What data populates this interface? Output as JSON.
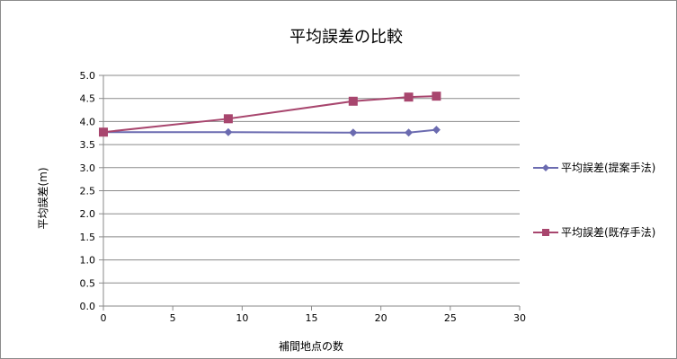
{
  "chart_data": {
    "type": "line",
    "title": "平均誤差の比較",
    "xlabel": "補間地点の数",
    "ylabel": "平均誤差(m)",
    "xlim": [
      0,
      30
    ],
    "ylim": [
      0,
      5
    ],
    "x_ticks": [
      0,
      5,
      10,
      15,
      20,
      25,
      30
    ],
    "x_tick_labels": [
      "0",
      "5",
      "10",
      "15",
      "20",
      "25",
      "30"
    ],
    "y_ticks": [
      0,
      0.5,
      1.0,
      1.5,
      2.0,
      2.5,
      3.0,
      3.5,
      4.0,
      4.5,
      5.0
    ],
    "y_tick_labels": [
      "0.0",
      "0.5",
      "1.0",
      "1.5",
      "2.0",
      "2.5",
      "3.0",
      "3.5",
      "4.0",
      "4.5",
      "5.0"
    ],
    "grid": "horizontal",
    "legend_position": "right",
    "series": [
      {
        "name": "平均誤差(提案手法)",
        "color": "#6b6bb0",
        "marker": "diamond",
        "x": [
          0,
          9,
          18,
          22,
          24
        ],
        "y": [
          3.77,
          3.77,
          3.76,
          3.76,
          3.82
        ]
      },
      {
        "name": "平均誤差(既存手法)",
        "color": "#a8466e",
        "marker": "square",
        "x": [
          0,
          9,
          18,
          22,
          24
        ],
        "y": [
          3.77,
          4.06,
          4.44,
          4.53,
          4.55
        ]
      }
    ]
  }
}
